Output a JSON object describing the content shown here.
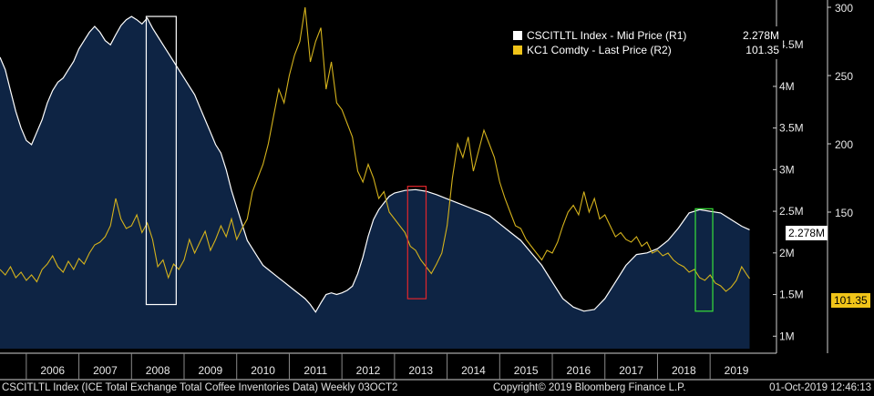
{
  "chart_data": {
    "type": "line",
    "x_labels": [
      "2006",
      "2007",
      "2008",
      "2009",
      "2010",
      "2011",
      "2012",
      "2013",
      "2014",
      "2015",
      "2016",
      "2017",
      "2018",
      "2019"
    ],
    "x_start": 2005.5,
    "x_end": 2019.95,
    "series": [
      {
        "name": "CSCITLTL Index - Mid Price (R1)",
        "axis": "R1",
        "style": "area",
        "color": "#ffffff",
        "fill": "#0e2444",
        "last_label": "2.278M",
        "points": [
          [
            2005.5,
            4.35
          ],
          [
            2005.6,
            4.2
          ],
          [
            2005.7,
            3.95
          ],
          [
            2005.8,
            3.7
          ],
          [
            2005.9,
            3.5
          ],
          [
            2006.0,
            3.35
          ],
          [
            2006.1,
            3.3
          ],
          [
            2006.2,
            3.45
          ],
          [
            2006.3,
            3.6
          ],
          [
            2006.4,
            3.8
          ],
          [
            2006.5,
            3.95
          ],
          [
            2006.6,
            4.05
          ],
          [
            2006.7,
            4.1
          ],
          [
            2006.8,
            4.2
          ],
          [
            2006.9,
            4.3
          ],
          [
            2007.0,
            4.45
          ],
          [
            2007.1,
            4.55
          ],
          [
            2007.2,
            4.65
          ],
          [
            2007.3,
            4.72
          ],
          [
            2007.4,
            4.65
          ],
          [
            2007.5,
            4.55
          ],
          [
            2007.6,
            4.5
          ],
          [
            2007.7,
            4.62
          ],
          [
            2007.8,
            4.73
          ],
          [
            2007.9,
            4.8
          ],
          [
            2008.0,
            4.84
          ],
          [
            2008.1,
            4.8
          ],
          [
            2008.2,
            4.75
          ],
          [
            2008.3,
            4.82
          ],
          [
            2008.4,
            4.7
          ],
          [
            2008.5,
            4.6
          ],
          [
            2008.6,
            4.5
          ],
          [
            2008.7,
            4.4
          ],
          [
            2008.8,
            4.3
          ],
          [
            2008.9,
            4.2
          ],
          [
            2009.0,
            4.1
          ],
          [
            2009.1,
            4.0
          ],
          [
            2009.2,
            3.9
          ],
          [
            2009.3,
            3.75
          ],
          [
            2009.4,
            3.6
          ],
          [
            2009.5,
            3.45
          ],
          [
            2009.6,
            3.3
          ],
          [
            2009.7,
            3.2
          ],
          [
            2009.8,
            3.0
          ],
          [
            2009.9,
            2.75
          ],
          [
            2010.0,
            2.55
          ],
          [
            2010.1,
            2.35
          ],
          [
            2010.2,
            2.15
          ],
          [
            2010.3,
            2.05
          ],
          [
            2010.4,
            1.95
          ],
          [
            2010.5,
            1.85
          ],
          [
            2010.6,
            1.8
          ],
          [
            2010.7,
            1.75
          ],
          [
            2010.8,
            1.7
          ],
          [
            2010.9,
            1.65
          ],
          [
            2011.0,
            1.6
          ],
          [
            2011.1,
            1.55
          ],
          [
            2011.2,
            1.5
          ],
          [
            2011.3,
            1.45
          ],
          [
            2011.4,
            1.38
          ],
          [
            2011.5,
            1.29
          ],
          [
            2011.6,
            1.4
          ],
          [
            2011.7,
            1.5
          ],
          [
            2011.8,
            1.52
          ],
          [
            2011.9,
            1.5
          ],
          [
            2012.0,
            1.52
          ],
          [
            2012.1,
            1.55
          ],
          [
            2012.2,
            1.6
          ],
          [
            2012.3,
            1.75
          ],
          [
            2012.4,
            1.95
          ],
          [
            2012.5,
            2.2
          ],
          [
            2012.6,
            2.4
          ],
          [
            2012.7,
            2.52
          ],
          [
            2012.8,
            2.6
          ],
          [
            2012.9,
            2.68
          ],
          [
            2013.0,
            2.72
          ],
          [
            2013.2,
            2.75
          ],
          [
            2013.4,
            2.76
          ],
          [
            2013.6,
            2.74
          ],
          [
            2013.8,
            2.7
          ],
          [
            2014.0,
            2.65
          ],
          [
            2014.2,
            2.6
          ],
          [
            2014.4,
            2.55
          ],
          [
            2014.6,
            2.5
          ],
          [
            2014.8,
            2.45
          ],
          [
            2015.0,
            2.35
          ],
          [
            2015.2,
            2.25
          ],
          [
            2015.4,
            2.15
          ],
          [
            2015.6,
            2.0
          ],
          [
            2015.8,
            1.85
          ],
          [
            2016.0,
            1.65
          ],
          [
            2016.2,
            1.45
          ],
          [
            2016.4,
            1.35
          ],
          [
            2016.6,
            1.3
          ],
          [
            2016.8,
            1.32
          ],
          [
            2017.0,
            1.45
          ],
          [
            2017.2,
            1.65
          ],
          [
            2017.4,
            1.85
          ],
          [
            2017.6,
            1.98
          ],
          [
            2017.8,
            2.0
          ],
          [
            2018.0,
            2.05
          ],
          [
            2018.2,
            2.15
          ],
          [
            2018.4,
            2.3
          ],
          [
            2018.6,
            2.48
          ],
          [
            2018.8,
            2.52
          ],
          [
            2019.0,
            2.5
          ],
          [
            2019.2,
            2.48
          ],
          [
            2019.4,
            2.4
          ],
          [
            2019.6,
            2.32
          ],
          [
            2019.75,
            2.278
          ]
        ]
      },
      {
        "name": "KC1 Comdty - Last Price (R2)",
        "axis": "R2",
        "style": "line",
        "color": "#d4b21c",
        "last_label": "101.35",
        "points": [
          [
            2005.5,
            108
          ],
          [
            2005.6,
            104
          ],
          [
            2005.7,
            110
          ],
          [
            2005.8,
            102
          ],
          [
            2005.9,
            106
          ],
          [
            2006.0,
            100
          ],
          [
            2006.1,
            104
          ],
          [
            2006.2,
            99
          ],
          [
            2006.3,
            108
          ],
          [
            2006.4,
            112
          ],
          [
            2006.5,
            118
          ],
          [
            2006.6,
            110
          ],
          [
            2006.7,
            106
          ],
          [
            2006.8,
            114
          ],
          [
            2006.9,
            108
          ],
          [
            2007.0,
            116
          ],
          [
            2007.1,
            112
          ],
          [
            2007.2,
            120
          ],
          [
            2007.3,
            126
          ],
          [
            2007.4,
            128
          ],
          [
            2007.5,
            132
          ],
          [
            2007.6,
            140
          ],
          [
            2007.7,
            160
          ],
          [
            2007.8,
            145
          ],
          [
            2007.9,
            138
          ],
          [
            2008.0,
            140
          ],
          [
            2008.1,
            148
          ],
          [
            2008.2,
            135
          ],
          [
            2008.3,
            142
          ],
          [
            2008.4,
            130
          ],
          [
            2008.5,
            110
          ],
          [
            2008.6,
            115
          ],
          [
            2008.7,
            102
          ],
          [
            2008.8,
            112
          ],
          [
            2008.9,
            108
          ],
          [
            2009.0,
            115
          ],
          [
            2009.1,
            130
          ],
          [
            2009.2,
            120
          ],
          [
            2009.3,
            128
          ],
          [
            2009.4,
            136
          ],
          [
            2009.5,
            122
          ],
          [
            2009.6,
            130
          ],
          [
            2009.7,
            140
          ],
          [
            2009.8,
            132
          ],
          [
            2009.9,
            145
          ],
          [
            2010.0,
            130
          ],
          [
            2010.1,
            138
          ],
          [
            2010.2,
            145
          ],
          [
            2010.3,
            165
          ],
          [
            2010.4,
            175
          ],
          [
            2010.5,
            185
          ],
          [
            2010.6,
            200
          ],
          [
            2010.7,
            220
          ],
          [
            2010.8,
            240
          ],
          [
            2010.9,
            230
          ],
          [
            2011.0,
            250
          ],
          [
            2011.1,
            265
          ],
          [
            2011.2,
            275
          ],
          [
            2011.3,
            300
          ],
          [
            2011.4,
            260
          ],
          [
            2011.5,
            275
          ],
          [
            2011.6,
            285
          ],
          [
            2011.7,
            240
          ],
          [
            2011.8,
            260
          ],
          [
            2011.9,
            230
          ],
          [
            2012.0,
            225
          ],
          [
            2012.1,
            215
          ],
          [
            2012.2,
            205
          ],
          [
            2012.3,
            180
          ],
          [
            2012.4,
            172
          ],
          [
            2012.5,
            185
          ],
          [
            2012.6,
            175
          ],
          [
            2012.7,
            160
          ],
          [
            2012.8,
            165
          ],
          [
            2012.9,
            150
          ],
          [
            2013.0,
            145
          ],
          [
            2013.1,
            140
          ],
          [
            2013.2,
            135
          ],
          [
            2013.3,
            125
          ],
          [
            2013.4,
            122
          ],
          [
            2013.5,
            115
          ],
          [
            2013.6,
            110
          ],
          [
            2013.7,
            105
          ],
          [
            2013.8,
            112
          ],
          [
            2013.9,
            120
          ],
          [
            2014.0,
            140
          ],
          [
            2014.1,
            175
          ],
          [
            2014.2,
            200
          ],
          [
            2014.3,
            190
          ],
          [
            2014.4,
            205
          ],
          [
            2014.5,
            180
          ],
          [
            2014.6,
            195
          ],
          [
            2014.7,
            210
          ],
          [
            2014.8,
            200
          ],
          [
            2014.9,
            190
          ],
          [
            2015.0,
            172
          ],
          [
            2015.1,
            160
          ],
          [
            2015.2,
            150
          ],
          [
            2015.3,
            140
          ],
          [
            2015.4,
            138
          ],
          [
            2015.5,
            130
          ],
          [
            2015.6,
            125
          ],
          [
            2015.7,
            120
          ],
          [
            2015.8,
            115
          ],
          [
            2015.9,
            122
          ],
          [
            2016.0,
            120
          ],
          [
            2016.1,
            128
          ],
          [
            2016.2,
            140
          ],
          [
            2016.3,
            150
          ],
          [
            2016.4,
            155
          ],
          [
            2016.5,
            148
          ],
          [
            2016.6,
            165
          ],
          [
            2016.7,
            150
          ],
          [
            2016.8,
            160
          ],
          [
            2016.9,
            145
          ],
          [
            2017.0,
            148
          ],
          [
            2017.1,
            140
          ],
          [
            2017.2,
            132
          ],
          [
            2017.3,
            135
          ],
          [
            2017.4,
            130
          ],
          [
            2017.5,
            128
          ],
          [
            2017.6,
            132
          ],
          [
            2017.7,
            125
          ],
          [
            2017.8,
            128
          ],
          [
            2017.9,
            120
          ],
          [
            2018.0,
            122
          ],
          [
            2018.1,
            118
          ],
          [
            2018.2,
            120
          ],
          [
            2018.3,
            115
          ],
          [
            2018.4,
            112
          ],
          [
            2018.5,
            110
          ],
          [
            2018.6,
            106
          ],
          [
            2018.7,
            108
          ],
          [
            2018.8,
            102
          ],
          [
            2018.9,
            100
          ],
          [
            2019.0,
            104
          ],
          [
            2019.1,
            98
          ],
          [
            2019.2,
            96
          ],
          [
            2019.3,
            92
          ],
          [
            2019.4,
            95
          ],
          [
            2019.5,
            100
          ],
          [
            2019.6,
            110
          ],
          [
            2019.7,
            104
          ],
          [
            2019.75,
            101.35
          ]
        ]
      }
    ],
    "axes": {
      "R1": {
        "min": 0.85,
        "max": 4.95,
        "ticks": [
          1,
          1.5,
          2,
          2.5,
          3,
          3.5,
          4,
          4.5
        ],
        "tick_labels": [
          "1M",
          "1.5M",
          "2M",
          "2.5M",
          "3M",
          "3.5M",
          "4M",
          "4.5M"
        ]
      },
      "R2": {
        "min": 50,
        "max": 300,
        "ticks": [
          150,
          200,
          250,
          300
        ],
        "tick_labels": [
          "150",
          "200",
          "250",
          "300"
        ]
      }
    },
    "annotations": [
      {
        "type": "box",
        "color": "#ffffff",
        "x0": 2008.28,
        "x1": 2008.85,
        "y0": 1.38,
        "y1": 4.84,
        "axis": "R1"
      },
      {
        "type": "box",
        "color": "#e0262c",
        "x0": 2013.25,
        "x1": 2013.6,
        "y0": 1.45,
        "y1": 2.8,
        "axis": "R1"
      },
      {
        "type": "box",
        "color": "#38e23a",
        "x0": 2018.72,
        "x1": 2019.05,
        "y0": 1.3,
        "y1": 2.53,
        "axis": "R1"
      }
    ],
    "legend_position": "top-right",
    "grid": false
  },
  "legend": {
    "items": [
      {
        "swatch": "#ffffff",
        "label": "CSCITLTL Index - Mid Price (R1)",
        "value": "2.278M"
      },
      {
        "swatch": "#f0c419",
        "label": "KC1 Comdty - Last Price (R2)",
        "value": "101.35"
      }
    ]
  },
  "footer": {
    "source": "CSCITLTL Index (ICE Total Exchange Total Coffee Inventories Data)  Weekly 03OCT2",
    "copyright": "Copyright© 2019 Bloomberg Finance L.P.",
    "timestamp": "01-Oct-2019 12:46:13"
  }
}
